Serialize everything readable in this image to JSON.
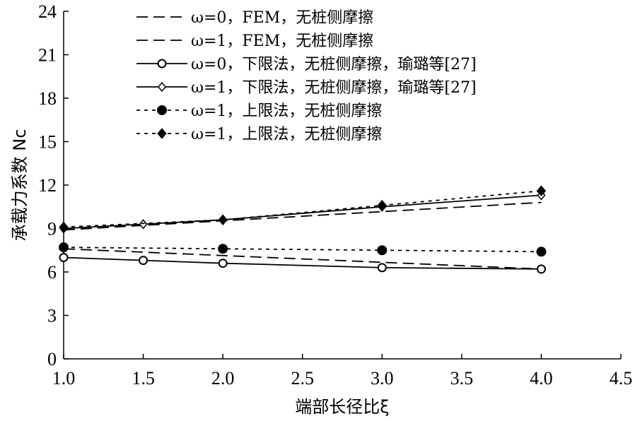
{
  "chart_data": {
    "type": "line",
    "xlabel": "端部长径比ξ",
    "ylabel": "承载力系数 Nc",
    "xlim": [
      1.0,
      4.5
    ],
    "ylim": [
      0,
      24
    ],
    "xticks": [
      "1.0",
      "1.5",
      "2.0",
      "2.5",
      "3.0",
      "3.5",
      "4.0",
      "4.5"
    ],
    "yticks": [
      "0",
      "3",
      "6",
      "9",
      "12",
      "15",
      "18",
      "21",
      "24"
    ],
    "grid": false,
    "legend_position": "top-left",
    "series": [
      {
        "name": "ω=0，FEM，无桩侧摩擦",
        "line": "long-dash",
        "marker": "none",
        "x": [
          1.0,
          4.0
        ],
        "y": [
          7.6,
          6.2
        ]
      },
      {
        "name": "ω=1，FEM，无桩侧摩擦",
        "line": "long-dash",
        "marker": "none",
        "x": [
          1.0,
          4.0
        ],
        "y": [
          8.9,
          10.8
        ]
      },
      {
        "name": "ω=0，下限法，无桩侧摩擦，瑜璐等[27]",
        "line": "solid",
        "marker": "open-circle",
        "x": [
          1.0,
          1.5,
          2.0,
          3.0,
          4.0
        ],
        "y": [
          7.0,
          6.8,
          6.6,
          6.3,
          6.2
        ]
      },
      {
        "name": "ω=1，下限法，无桩侧摩擦，瑜璐等[27]",
        "line": "solid",
        "marker": "open-diamond",
        "x": [
          1.0,
          1.5,
          2.0,
          3.0,
          4.0
        ],
        "y": [
          9.0,
          9.3,
          9.6,
          10.5,
          11.3
        ]
      },
      {
        "name": "ω=1，上限法，无桩侧摩擦",
        "line": "short-dash",
        "marker": "filled-circle",
        "x": [
          1.0,
          2.0,
          3.0,
          4.0
        ],
        "y": [
          7.7,
          7.6,
          7.5,
          7.4
        ]
      },
      {
        "name": "ω=1，上限法，无桩侧摩擦",
        "line": "short-dash",
        "marker": "filled-diamond",
        "x": [
          1.0,
          2.0,
          3.0,
          4.0
        ],
        "y": [
          9.1,
          9.6,
          10.6,
          11.6
        ]
      }
    ]
  }
}
